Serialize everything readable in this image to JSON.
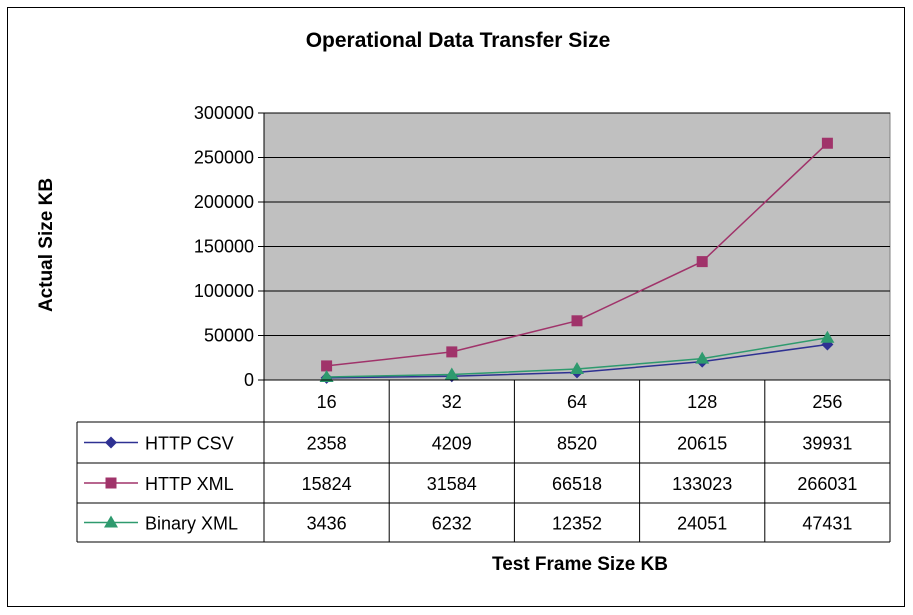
{
  "chart_data": {
    "type": "line",
    "title": "Operational Data Transfer Size",
    "xlabel": "Test Frame Size KB",
    "ylabel": "Actual Size KB",
    "categories": [
      "16",
      "32",
      "64",
      "128",
      "256"
    ],
    "ylim": [
      0,
      300000
    ],
    "yticks": [
      "300000",
      "250000",
      "200000",
      "150000",
      "100000",
      "50000",
      "0"
    ],
    "grid": true,
    "legend": "data-table",
    "series": [
      {
        "name": "HTTP CSV",
        "values": [
          2358,
          4209,
          8520,
          20615,
          39931
        ],
        "color": "#2e3192",
        "marker": "diamond"
      },
      {
        "name": "HTTP XML",
        "values": [
          15824,
          31584,
          66518,
          133023,
          266031
        ],
        "color": "#a0336a",
        "marker": "square"
      },
      {
        "name": "Binary XML",
        "values": [
          3436,
          6232,
          12352,
          24051,
          47431
        ],
        "color": "#2e9a6e",
        "marker": "triangle"
      }
    ],
    "value_labels": [
      [
        "2358",
        "4209",
        "8520",
        "20615",
        "39931"
      ],
      [
        "15824",
        "31584",
        "66518",
        "133023",
        "266031"
      ],
      [
        "3436",
        "6232",
        "12352",
        "24051",
        "47431"
      ]
    ],
    "plot_background": "#c0c0c0"
  }
}
